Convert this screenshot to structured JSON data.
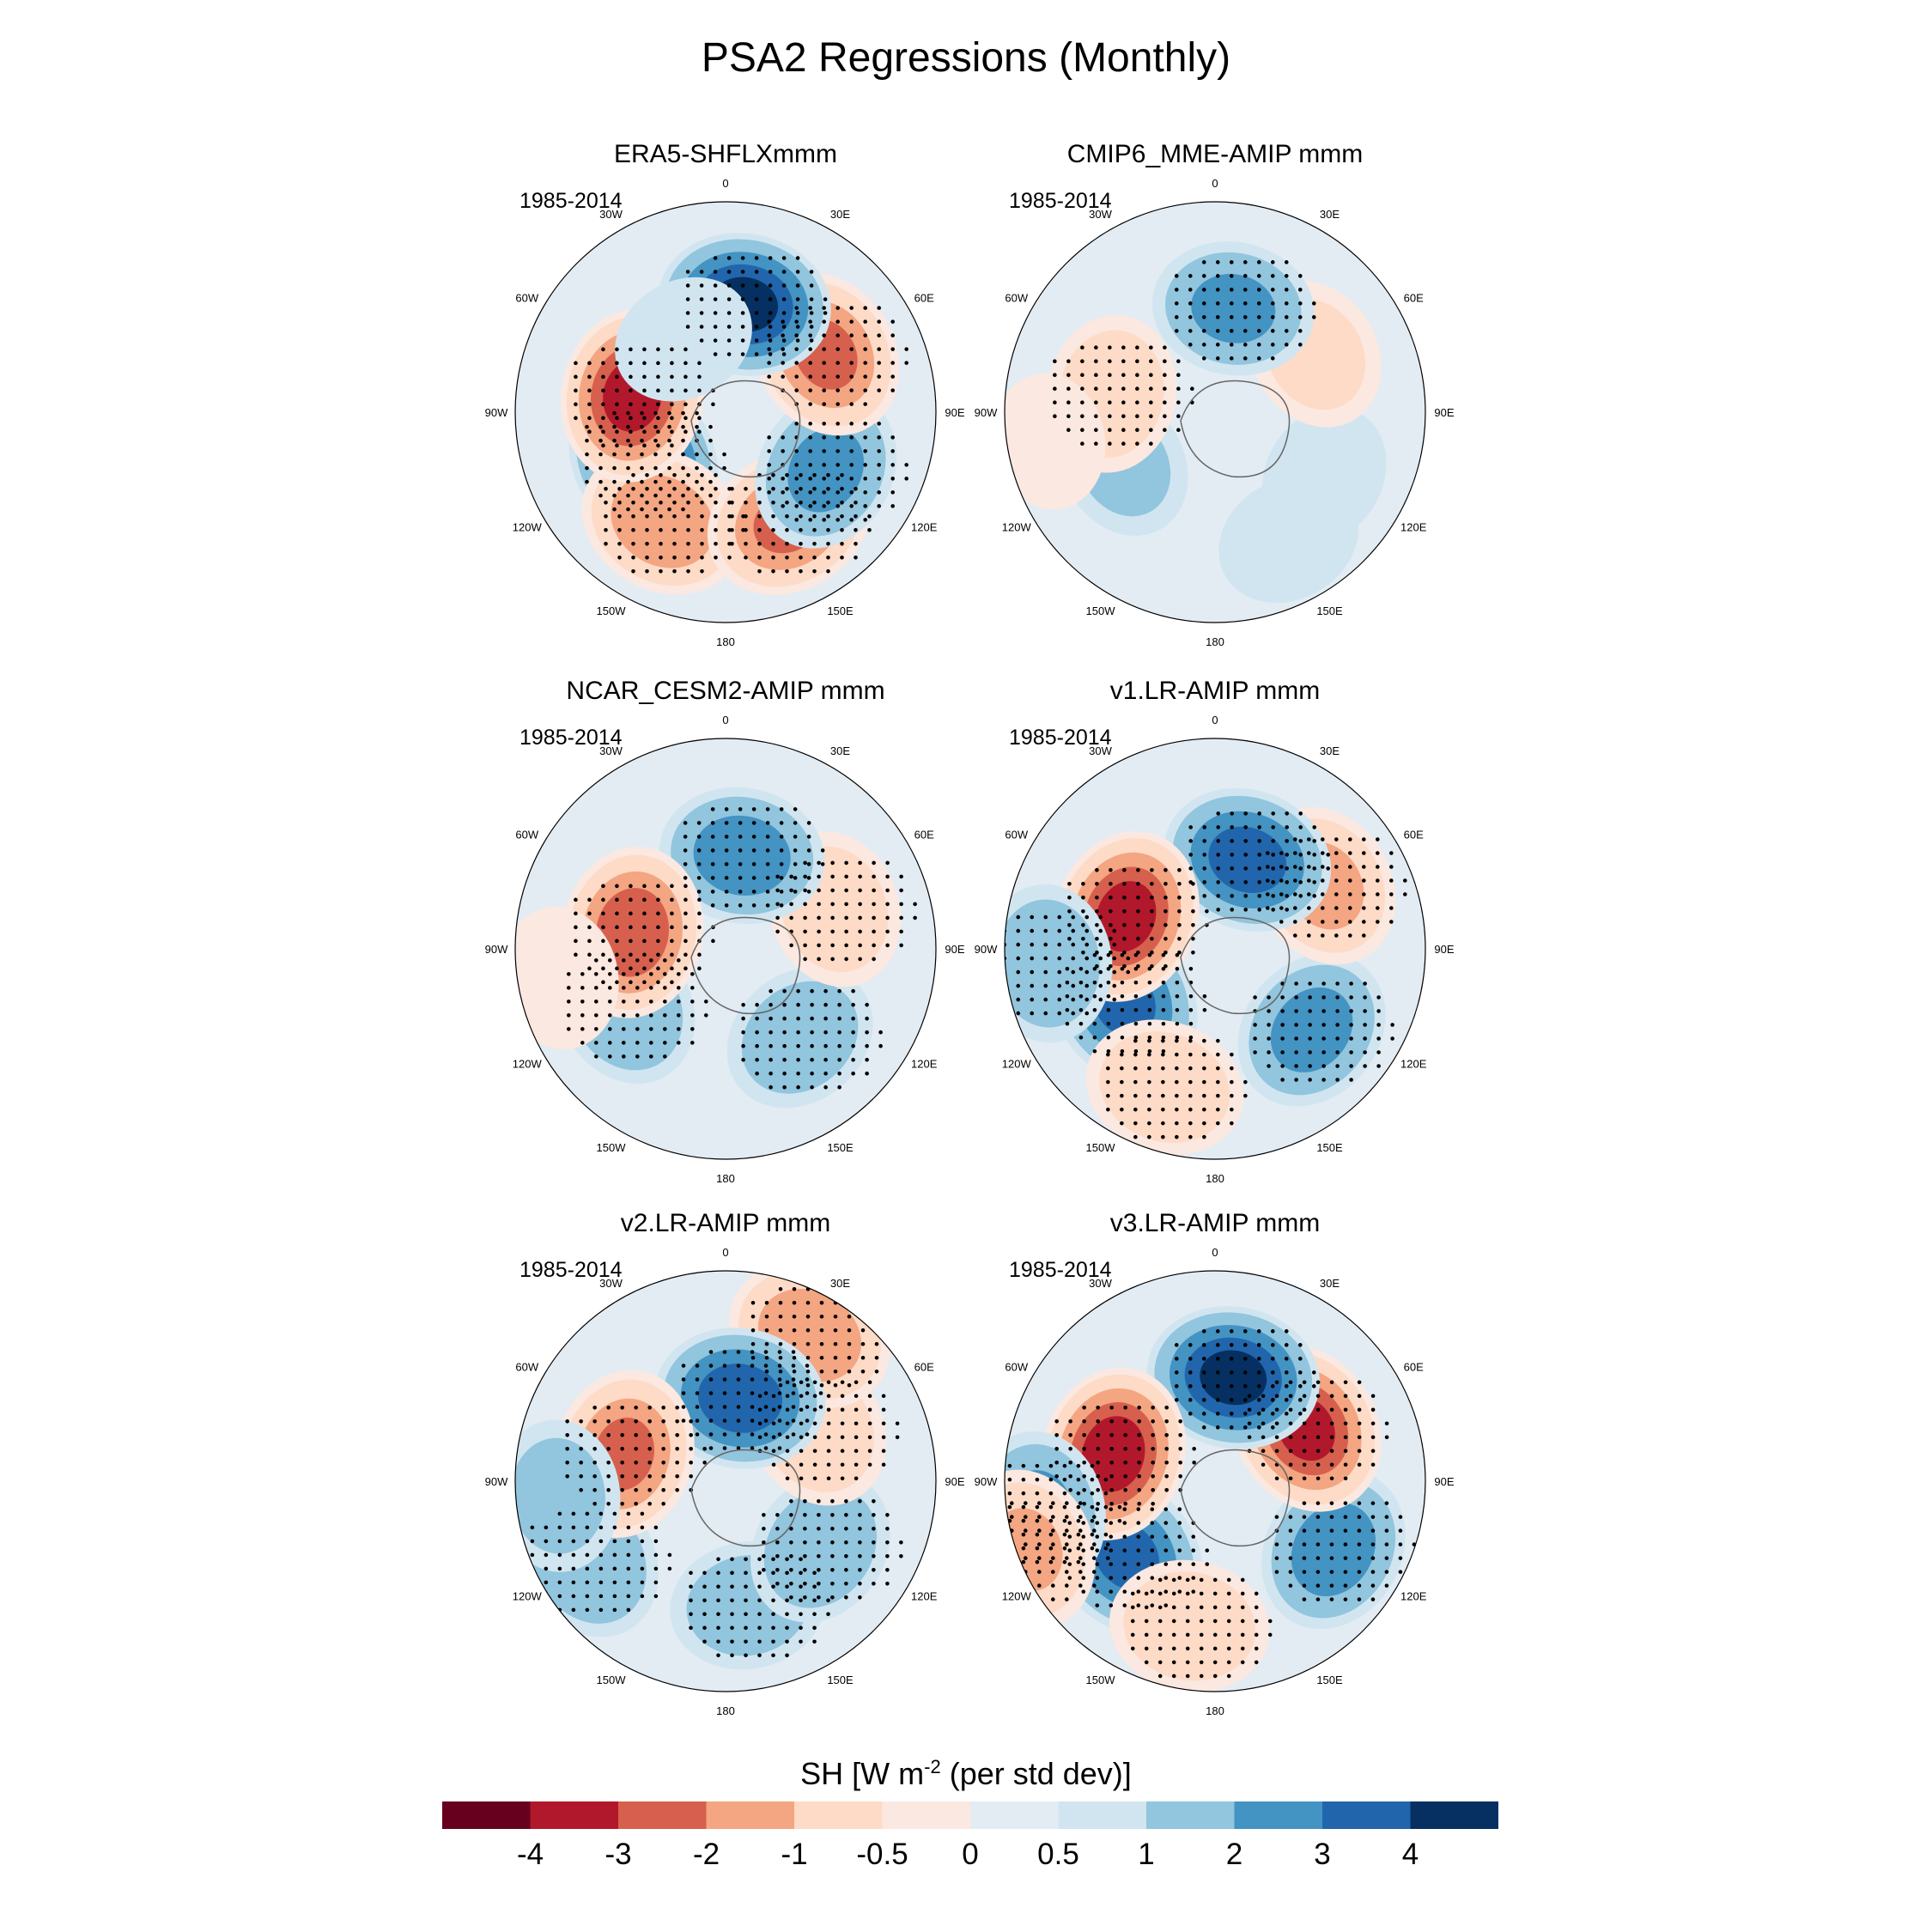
{
  "figure": {
    "title": "PSA2 Regressions (Monthly)"
  },
  "panels": [
    {
      "title": "ERA5-SHFLXmmm",
      "period": "1985-2014",
      "blobs": [
        [
          -60,
          0.45,
          3.6
        ],
        [
          -30,
          0.6,
          -2.8
        ],
        [
          30,
          0.6,
          -3.0
        ],
        [
          60,
          0.55,
          2.1
        ],
        [
          120,
          0.55,
          -3.0
        ],
        [
          170,
          0.52,
          4.0
        ],
        [
          -100,
          0.45,
          -4.2
        ],
        [
          -150,
          0.4,
          0.8
        ]
      ]
    },
    {
      "title": "CMIP6_MME-AMIP  mmm",
      "period": "1985-2014",
      "blobs": [
        [
          -60,
          0.5,
          1.0
        ],
        [
          30,
          0.7,
          0.9
        ],
        [
          60,
          0.6,
          0.8
        ],
        [
          120,
          0.55,
          -1.2
        ],
        [
          170,
          0.5,
          2.0
        ],
        [
          -100,
          0.5,
          -1.6
        ],
        [
          -80,
          0.8,
          -0.6
        ]
      ]
    },
    {
      "title": "NCAR_CESM2-AMIP  mmm",
      "period": "1985-2014",
      "blobs": [
        [
          -60,
          0.55,
          1.8
        ],
        [
          40,
          0.55,
          1.5
        ],
        [
          110,
          0.55,
          -1.6
        ],
        [
          170,
          0.45,
          2.4
        ],
        [
          -100,
          0.45,
          -3.6
        ],
        [
          -80,
          0.8,
          -0.8
        ]
      ]
    },
    {
      "title": "v1.LR-AMIP  mmm",
      "period": "1985-2014",
      "blobs": [
        [
          -60,
          0.5,
          3.0
        ],
        [
          -20,
          0.7,
          -1.8
        ],
        [
          50,
          0.6,
          2.2
        ],
        [
          120,
          0.6,
          -2.2
        ],
        [
          160,
          0.45,
          3.2
        ],
        [
          -110,
          0.45,
          -4.2
        ],
        [
          -85,
          0.8,
          1.6
        ]
      ]
    },
    {
      "title": "v2.LR-AMIP  mmm",
      "period": "1985-2014",
      "blobs": [
        [
          -60,
          0.75,
          1.8
        ],
        [
          10,
          0.6,
          1.4
        ],
        [
          55,
          0.55,
          1.6
        ],
        [
          120,
          0.5,
          -1.8
        ],
        [
          150,
          0.8,
          -2.8
        ],
        [
          170,
          0.4,
          3.4
        ],
        [
          -105,
          0.5,
          -3.0
        ],
        [
          -85,
          0.8,
          1.2
        ]
      ]
    },
    {
      "title": "v3.LR-AMIP  mmm",
      "period": "1985-2014",
      "blobs": [
        [
          -50,
          0.55,
          3.0
        ],
        [
          -10,
          0.7,
          -1.8
        ],
        [
          60,
          0.65,
          2.4
        ],
        [
          120,
          0.5,
          -4.0
        ],
        [
          170,
          0.5,
          4.0
        ],
        [
          -105,
          0.5,
          -4.4
        ],
        [
          -80,
          0.85,
          2.0
        ],
        [
          -70,
          0.95,
          -2.0
        ]
      ]
    }
  ],
  "map_labels": {
    "lon_labels": [
      "0",
      "30E",
      "60E",
      "90E",
      "120E",
      "150E",
      "180",
      "150W",
      "120W",
      "90W",
      "60W",
      "30W"
    ]
  },
  "colorbar": {
    "label": "SH [W m",
    "label_exp": "-2",
    "label_tail": " (per std dev)]",
    "colors": [
      "#67001f",
      "#b2182b",
      "#d6604d",
      "#f4a582",
      "#fddbc7",
      "#fbe8e0",
      "#e3ecf3",
      "#d1e5f0",
      "#92c5de",
      "#4393c3",
      "#2166ac",
      "#053061"
    ],
    "levels": [
      -4,
      -3,
      -2,
      -1,
      -0.5,
      0,
      0.5,
      1,
      2,
      3,
      4
    ],
    "tick_labels": [
      "-4",
      "-3",
      "-2",
      "-1",
      "-0.5",
      "0",
      "0.5",
      "1",
      "2",
      "3",
      "4"
    ]
  },
  "chart_data": {
    "type": "heatmap",
    "title": "PSA2 Regressions (Monthly)",
    "variable": "SH [W m-2 (per std dev)]",
    "projection": "south polar stereographic",
    "panels": [
      "ERA5-SHFLXmmm",
      "CMIP6_MME-AMIP  mmm",
      "NCAR_CESM2-AMIP  mmm",
      "v1.LR-AMIP  mmm",
      "v2.LR-AMIP  mmm",
      "v3.LR-AMIP  mmm"
    ],
    "period": "1985-2014",
    "levels": [
      -4,
      -3,
      -2,
      -1,
      -0.5,
      0,
      0.5,
      1,
      2,
      3,
      4
    ]
  }
}
